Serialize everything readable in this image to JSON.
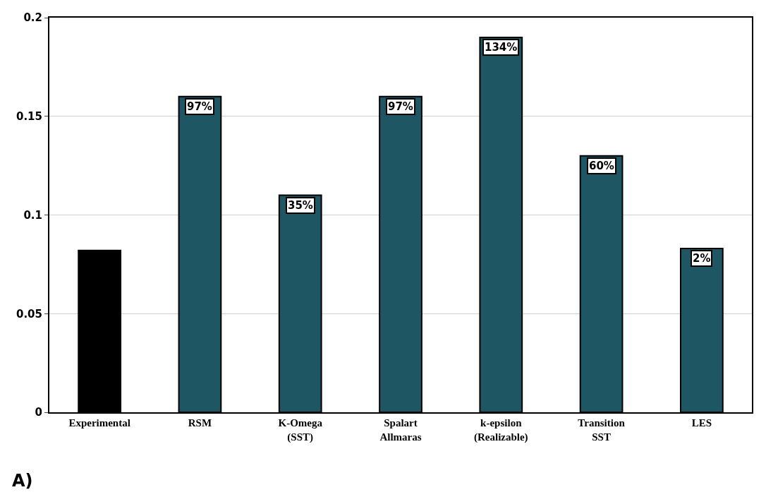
{
  "chart_data": {
    "type": "bar",
    "categories": [
      "Experimental",
      "RSM",
      "K-Omega\n(SST)",
      "Spalart\nAllmaras",
      "k-epsilon\n(Realizable)",
      "Transition\nSST",
      "LES"
    ],
    "values": [
      0.082,
      0.16,
      0.11,
      0.16,
      0.19,
      0.13,
      0.083
    ],
    "colors": [
      "#000000",
      "#1f5663",
      "#1f5663",
      "#1f5663",
      "#1f5663",
      "#1f5663",
      "#1f5663"
    ],
    "ylim": [
      0,
      0.2
    ],
    "yticks": [
      0,
      0.05,
      0.1,
      0.15,
      0.2
    ],
    "grid": "y",
    "annotations": [
      {
        "text": "97%",
        "x": "RSM",
        "y": 0.16
      },
      {
        "text": "35%",
        "x": "K-Omega\n(SST)",
        "y": 0.11
      },
      {
        "text": "97%",
        "x": "Spalart\nAllmaras",
        "y": 0.16
      },
      {
        "text": "134%",
        "x": "k-epsilon\n(Realizable)",
        "y": 0.19
      },
      {
        "text": "60%",
        "x": "Transition\nSST",
        "y": 0.13
      },
      {
        "text": "2%",
        "x": "LES",
        "y": 0.083
      },
      "A)"
    ]
  }
}
